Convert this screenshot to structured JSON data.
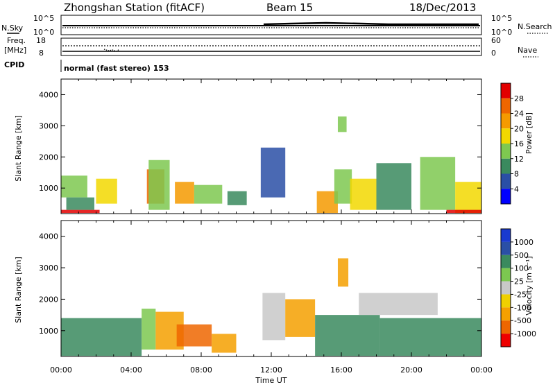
{
  "header": {
    "station": "Zhongshan Station (fitACF)",
    "beam": "Beam 15",
    "date": "18/Dec/2013"
  },
  "top_panel": {
    "nsky_label": "N.Sky",
    "nsky_ticks": [
      "10^5",
      "10^0"
    ],
    "nsearch_label": "N.Search",
    "nsearch_ticks": [
      "10^5",
      "10^0"
    ],
    "freq_label": "Freq.",
    "freq_unit": "[MHz]",
    "freq_ticks": [
      "18",
      "8"
    ],
    "nave_label": "Nave",
    "nave_ticks": [
      "60",
      "0"
    ],
    "cpid_label": "CPID",
    "cpid_value": "normal (fast stereo) 153"
  },
  "colors": {
    "power": [
      "#0000ff",
      "#2a4fa6",
      "#3a8a5e",
      "#7ec850",
      "#f2d800",
      "#f59a00",
      "#ee6600",
      "#e20000"
    ],
    "velocity": [
      "#ee0000",
      "#ee6600",
      "#f5a000",
      "#f0d000",
      "#c8c8c8",
      "#7cc850",
      "#3a8a5e",
      "#2a4fa6",
      "#1a3ad0"
    ]
  },
  "chart_data": [
    {
      "type": "heatmap",
      "name": "power",
      "ylabel": "Slant Range [km]",
      "xlabel": "",
      "x_ticks": [
        "00:00",
        "04:00",
        "08:00",
        "12:00",
        "16:00",
        "20:00",
        "00:00"
      ],
      "y_ticks": [
        "1000",
        "2000",
        "3000",
        "4000"
      ],
      "ylim": [
        180,
        4500
      ],
      "colorbar_label": "Power [dB]",
      "colorbar_ticks": [
        "4",
        "8",
        "12",
        "16",
        "20",
        "24",
        "28"
      ],
      "patches": [
        {
          "t0": 0.0,
          "t1": 2.2,
          "r0": 200,
          "r1": 300,
          "level": 7
        },
        {
          "t0": 0.0,
          "t1": 1.5,
          "r0": 700,
          "r1": 1400,
          "level": 3
        },
        {
          "t0": 0.3,
          "t1": 1.9,
          "r0": 300,
          "r1": 700,
          "level": 2
        },
        {
          "t0": 2.0,
          "t1": 3.2,
          "r0": 500,
          "r1": 1300,
          "level": 4
        },
        {
          "t0": 4.9,
          "t1": 5.9,
          "r0": 500,
          "r1": 1600,
          "level": 6
        },
        {
          "t0": 5.0,
          "t1": 6.2,
          "r0": 300,
          "r1": 1900,
          "level": 3
        },
        {
          "t0": 6.5,
          "t1": 7.6,
          "r0": 500,
          "r1": 1200,
          "level": 5
        },
        {
          "t0": 7.6,
          "t1": 9.2,
          "r0": 500,
          "r1": 1100,
          "level": 3
        },
        {
          "t0": 9.5,
          "t1": 10.6,
          "r0": 450,
          "r1": 900,
          "level": 2
        },
        {
          "t0": 11.4,
          "t1": 12.8,
          "r0": 700,
          "r1": 2300,
          "level": 1
        },
        {
          "t0": 14.6,
          "t1": 15.8,
          "r0": 200,
          "r1": 900,
          "level": 5
        },
        {
          "t0": 15.6,
          "t1": 16.6,
          "r0": 500,
          "r1": 1600,
          "level": 3
        },
        {
          "t0": 15.8,
          "t1": 16.3,
          "r0": 2800,
          "r1": 3300,
          "level": 3
        },
        {
          "t0": 16.5,
          "t1": 18.0,
          "r0": 300,
          "r1": 1300,
          "level": 4
        },
        {
          "t0": 18.0,
          "t1": 20.0,
          "r0": 300,
          "r1": 1800,
          "level": 2
        },
        {
          "t0": 20.5,
          "t1": 22.5,
          "r0": 300,
          "r1": 2000,
          "level": 3
        },
        {
          "t0": 22.5,
          "t1": 24.0,
          "r0": 200,
          "r1": 1200,
          "level": 4
        },
        {
          "t0": 22.0,
          "t1": 24.0,
          "r0": 200,
          "r1": 300,
          "level": 7
        }
      ]
    },
    {
      "type": "heatmap",
      "name": "velocity",
      "ylabel": "Slant Range [km]",
      "xlabel": "Time UT",
      "x_ticks": [
        "00:00",
        "04:00",
        "08:00",
        "12:00",
        "16:00",
        "20:00",
        "00:00"
      ],
      "y_ticks": [
        "1000",
        "2000",
        "3000",
        "4000"
      ],
      "ylim": [
        180,
        4500
      ],
      "colorbar_label": "Velocity [m s⁻¹]",
      "colorbar_ticks": [
        "1000",
        "500",
        "100",
        "25",
        "-25",
        "-100",
        "-500",
        "-1000"
      ],
      "patches": [
        {
          "t0": 0.0,
          "t1": 4.6,
          "r0": 200,
          "r1": 1400,
          "level": 6
        },
        {
          "t0": 4.6,
          "t1": 5.4,
          "r0": 400,
          "r1": 1700,
          "level": 5
        },
        {
          "t0": 5.4,
          "t1": 7.0,
          "r0": 400,
          "r1": 1600,
          "level": 2
        },
        {
          "t0": 6.6,
          "t1": 8.6,
          "r0": 500,
          "r1": 1200,
          "level": 1
        },
        {
          "t0": 8.6,
          "t1": 10.0,
          "r0": 300,
          "r1": 900,
          "level": 2
        },
        {
          "t0": 11.5,
          "t1": 12.8,
          "r0": 700,
          "r1": 2200,
          "level": 4
        },
        {
          "t0": 12.8,
          "t1": 14.5,
          "r0": 800,
          "r1": 2000,
          "level": 2
        },
        {
          "t0": 14.5,
          "t1": 18.2,
          "r0": 200,
          "r1": 1500,
          "level": 6
        },
        {
          "t0": 15.8,
          "t1": 16.4,
          "r0": 2400,
          "r1": 3300,
          "level": 2
        },
        {
          "t0": 17.0,
          "t1": 21.5,
          "r0": 1500,
          "r1": 2200,
          "level": 4
        },
        {
          "t0": 18.2,
          "t1": 24.0,
          "r0": 200,
          "r1": 1400,
          "level": 6
        }
      ]
    }
  ]
}
